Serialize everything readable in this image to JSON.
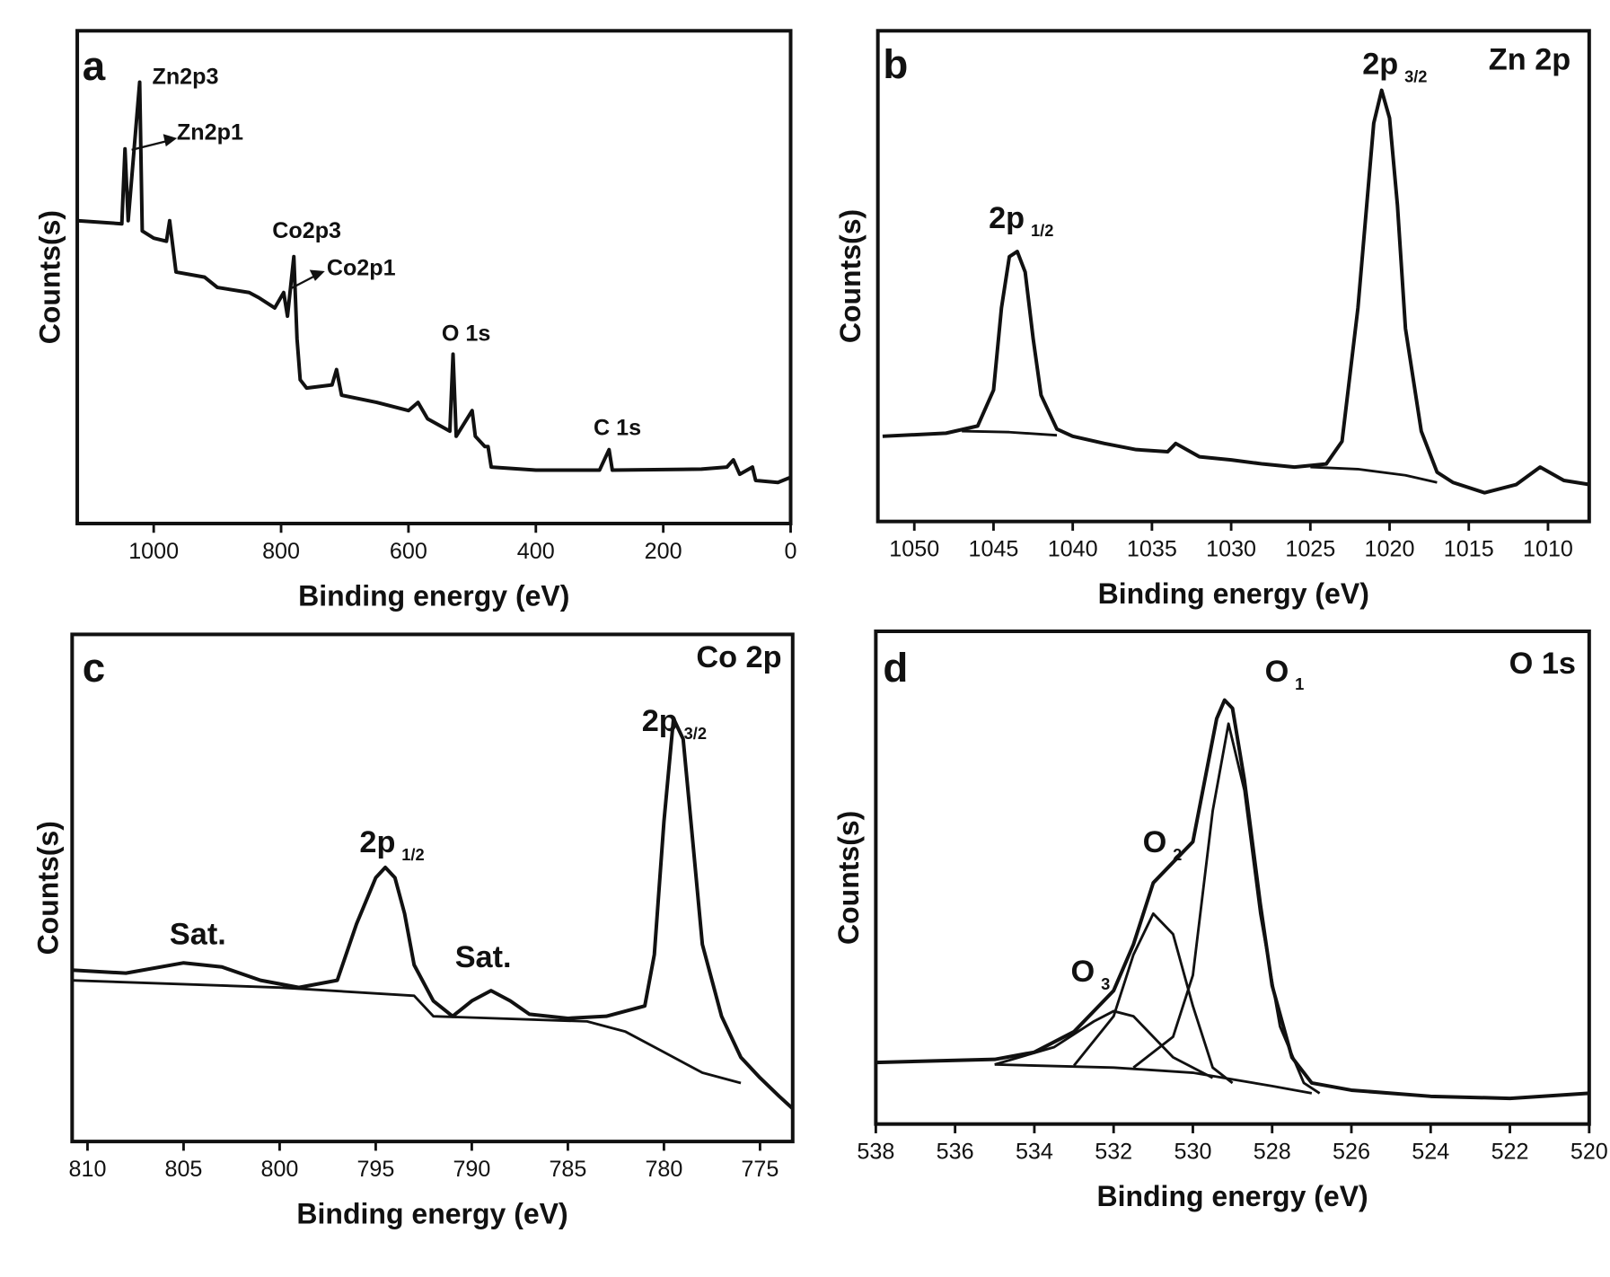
{
  "chart_data": [
    {
      "type": "line",
      "panel_label": "a",
      "xlabel": "Binding energy (eV)",
      "ylabel": "Counts(s)",
      "xlim": [
        1120,
        0
      ],
      "xticks": [
        1000,
        800,
        600,
        400,
        200,
        0
      ],
      "ylim": [
        0,
        480
      ],
      "series": [
        {
          "color": "#111111",
          "x": [
            1120,
            1050,
            1045,
            1040,
            1022,
            1018,
            1000,
            980,
            975,
            965,
            920,
            900,
            850,
            835,
            810,
            796,
            790,
            780,
            775,
            770,
            760,
            720,
            713,
            705,
            650,
            600,
            585,
            570,
            535,
            530,
            525,
            500,
            495,
            480,
            475,
            470,
            400,
            300,
            285,
            280,
            140,
            100,
            90,
            80,
            60,
            55,
            20,
            0
          ],
          "values": [
            295,
            292,
            365,
            295,
            430,
            285,
            278,
            275,
            295,
            245,
            240,
            230,
            225,
            220,
            210,
            225,
            202,
            260,
            180,
            140,
            132,
            135,
            150,
            125,
            118,
            110,
            118,
            102,
            90,
            165,
            85,
            110,
            85,
            75,
            75,
            55,
            52,
            52,
            72,
            52,
            53,
            55,
            62,
            48,
            55,
            42,
            40,
            45
          ]
        }
      ],
      "annotations": [
        {
          "text": "Zn2p3"
        },
        {
          "text": "Zn2p1"
        },
        {
          "text": "Co2p3"
        },
        {
          "text": "Co2p1"
        },
        {
          "text": "O 1s"
        },
        {
          "text": "C 1s"
        }
      ]
    },
    {
      "type": "line",
      "panel_label": "b",
      "xlabel": "Binding energy (eV)",
      "ylabel": "Counts(s)",
      "xlim": [
        1052.3,
        1007.4
      ],
      "xticks": [
        1050,
        1045,
        1040,
        1035,
        1030,
        1025,
        1020,
        1015,
        1010
      ],
      "ylim": [
        0,
        478
      ],
      "series": [
        {
          "color": "#111111",
          "x": [
            1052,
            1048,
            1046,
            1045,
            1044.5,
            1044,
            1043.5,
            1043,
            1042.5,
            1042,
            1041,
            1040,
            1038,
            1036,
            1034,
            1033.5,
            1032,
            1030,
            1028,
            1026,
            1024,
            1023,
            1022,
            1021,
            1020.5,
            1020,
            1019.5,
            1019,
            1018,
            1017,
            1016,
            1014,
            1012,
            1010.5,
            1009,
            1007.4
          ],
          "values": [
            83,
            86,
            93,
            128,
            208,
            258,
            263,
            243,
            178,
            123,
            90,
            83,
            76,
            70,
            68,
            76,
            63,
            60,
            56,
            53,
            56,
            78,
            208,
            388,
            420,
            393,
            308,
            188,
            88,
            48,
            38,
            28,
            36,
            53,
            40,
            36
          ]
        },
        {
          "color": "#111111",
          "x": [
            1047,
            1044,
            1041
          ],
          "values": [
            88,
            87,
            84
          ]
        },
        {
          "color": "#111111",
          "x": [
            1025,
            1022,
            1019,
            1017
          ],
          "values": [
            53,
            51,
            45,
            38
          ]
        }
      ],
      "annotations": [
        {
          "text": "2p",
          "sub": "1/2"
        },
        {
          "text": "2p",
          "sub": "3/2"
        },
        {
          "text": "Zn 2p"
        }
      ]
    },
    {
      "type": "line",
      "panel_label": "c",
      "xlabel": "Binding energy (eV)",
      "ylabel": "Counts(s)",
      "xlim": [
        810.8,
        773.3
      ],
      "xticks": [
        810,
        805,
        800,
        795,
        790,
        785,
        780,
        775
      ],
      "ylim": [
        0,
        494
      ],
      "series": [
        {
          "color": "#111111",
          "x": [
            810.8,
            808,
            805,
            803,
            801,
            799,
            797,
            796,
            795,
            794.5,
            794,
            793.5,
            793,
            792,
            791,
            790,
            789,
            788,
            787,
            785,
            783,
            781,
            780.5,
            780,
            779.5,
            779,
            778.5,
            778,
            777,
            776,
            775,
            774,
            773.3
          ],
          "values": [
            167,
            164,
            174,
            170,
            157,
            150,
            157,
            212,
            257,
            267,
            257,
            222,
            172,
            137,
            122,
            137,
            147,
            137,
            124,
            120,
            122,
            132,
            182,
            312,
            412,
            392,
            292,
            192,
            122,
            82,
            62,
            44,
            32
          ]
        },
        {
          "color": "#111111",
          "x": [
            810.8,
            800,
            793,
            792,
            784,
            782,
            780,
            778,
            776
          ],
          "values": [
            157,
            150,
            142,
            122,
            117,
            107,
            87,
            67,
            57
          ]
        }
      ],
      "annotations": [
        {
          "text": "Sat."
        },
        {
          "text": "Sat."
        },
        {
          "text": "2p",
          "sub": "1/2"
        },
        {
          "text": "2p",
          "sub": "3/2"
        },
        {
          "text": "Co 2p"
        }
      ]
    },
    {
      "type": "line",
      "panel_label": "d",
      "xlabel": "Binding energy (eV)",
      "ylabel": "Counts(s)",
      "xlim": [
        538,
        520
      ],
      "xticks": [
        538,
        536,
        534,
        532,
        530,
        528,
        526,
        524,
        522,
        520
      ],
      "ylim": [
        0,
        480
      ],
      "series": [
        {
          "color": "#111111",
          "x": [
            538,
            535,
            534,
            533,
            532,
            531.5,
            531,
            530.5,
            530,
            529.7,
            529.4,
            529.2,
            529,
            528.7,
            528.3,
            528,
            527.5,
            527,
            526,
            524,
            522,
            520
          ],
          "values": [
            60,
            63,
            70,
            90,
            130,
            175,
            235,
            255,
            275,
            335,
            395,
            413,
            405,
            335,
            215,
            135,
            65,
            40,
            33,
            27,
            25,
            30
          ]
        },
        {
          "color": "#111111",
          "x": [
            531.5,
            530.5,
            530,
            529.5,
            529.1,
            528.7,
            528.3,
            527.8,
            527.2,
            526.8
          ],
          "values": [
            55,
            85,
            145,
            305,
            390,
            325,
            205,
            95,
            40,
            30
          ]
        },
        {
          "color": "#111111",
          "x": [
            533,
            532,
            531.5,
            531,
            530.5,
            530,
            529.5,
            529
          ],
          "values": [
            57,
            105,
            165,
            205,
            185,
            115,
            55,
            40
          ]
        },
        {
          "color": "#111111",
          "x": [
            535,
            533.5,
            532.5,
            532,
            531.5,
            530.5,
            529.5
          ],
          "values": [
            58,
            75,
            100,
            110,
            105,
            65,
            45
          ]
        },
        {
          "color": "#111111",
          "x": [
            535,
            532,
            530,
            528,
            527
          ],
          "values": [
            58,
            55,
            50,
            37,
            30
          ]
        }
      ],
      "annotations": [
        {
          "text": "O",
          "sub": "1"
        },
        {
          "text": "O",
          "sub": "2"
        },
        {
          "text": "O",
          "sub": "3"
        },
        {
          "text": "O 1s"
        }
      ]
    }
  ]
}
